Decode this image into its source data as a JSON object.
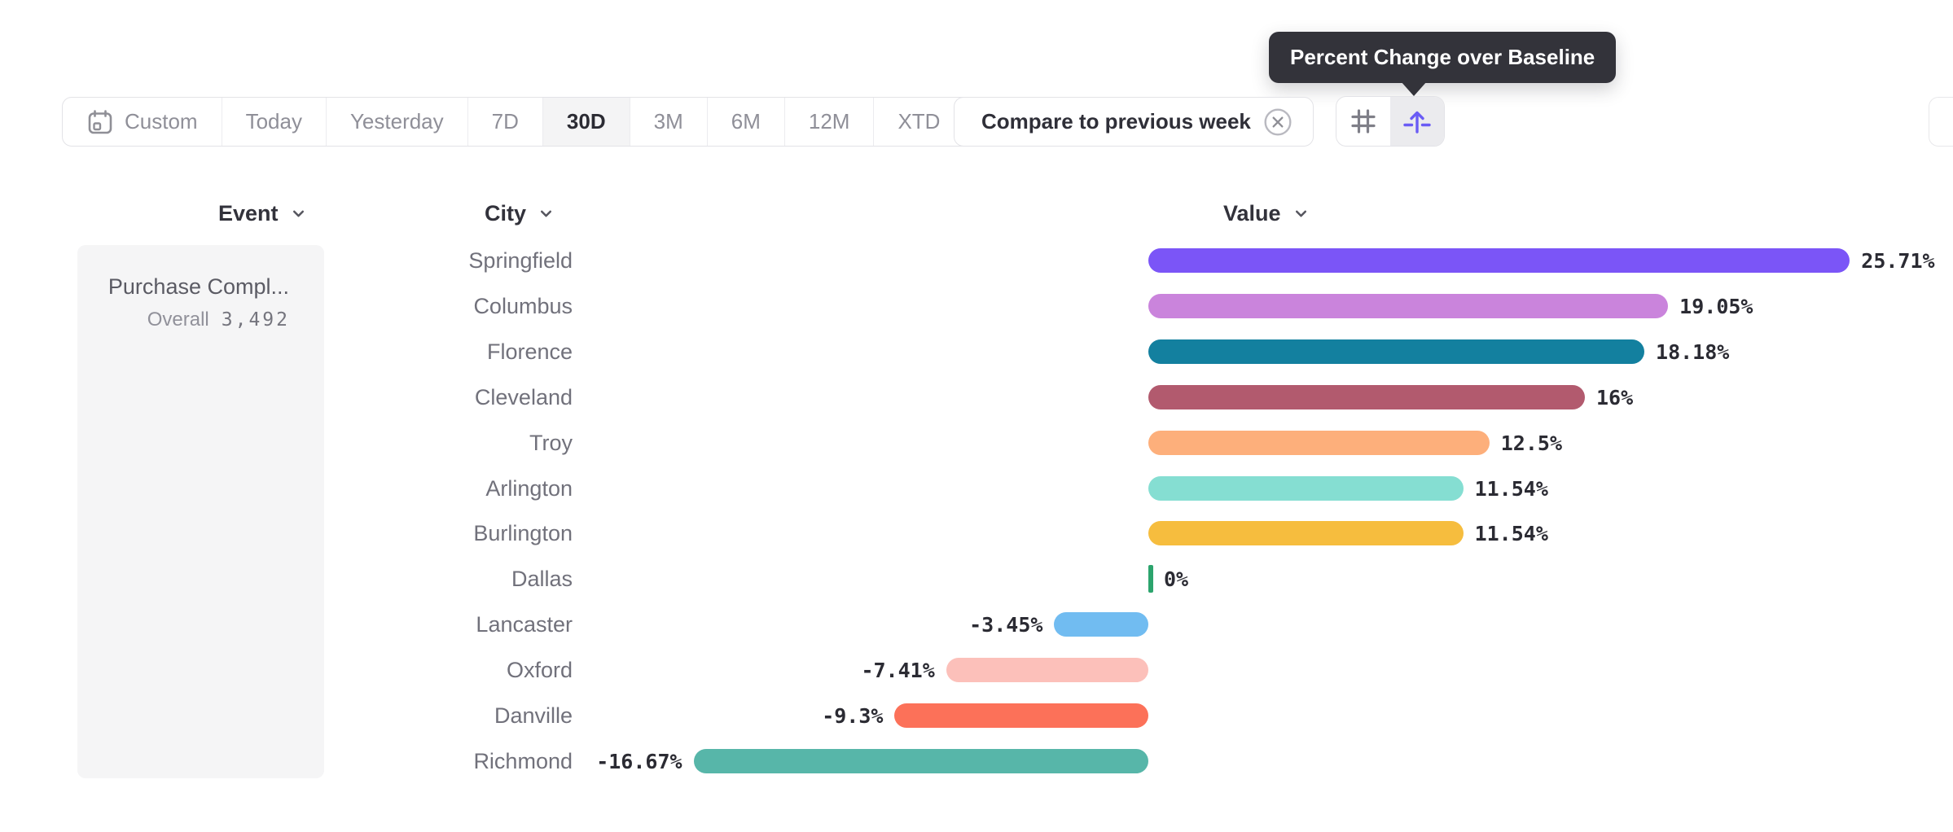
{
  "tooltip": {
    "text": "Percent Change over Baseline",
    "bg": "#33333a"
  },
  "toolbar": {
    "date_ranges": [
      {
        "label": "Custom",
        "icon": "calendar-icon",
        "selected": false
      },
      {
        "label": "Today",
        "selected": false
      },
      {
        "label": "Yesterday",
        "selected": false
      },
      {
        "label": "7D",
        "selected": false
      },
      {
        "label": "30D",
        "selected": true
      },
      {
        "label": "3M",
        "selected": false
      },
      {
        "label": "6M",
        "selected": false
      },
      {
        "label": "12M",
        "selected": false
      },
      {
        "label": "XTD",
        "chevron": true,
        "selected": false
      }
    ],
    "compare_label": "Compare to previous week",
    "compare_dismiss_icon": "circle-x-icon",
    "view_toggles": [
      {
        "name": "grid-view",
        "icon": "hash-grid-icon",
        "active": false,
        "color": "#7f7f88"
      },
      {
        "name": "percent-change-baseline-view",
        "icon": "arrow-over-baseline-icon",
        "active": true,
        "color": "#6a5cf5"
      }
    ]
  },
  "columns": {
    "event": "Event",
    "city": "City",
    "value": "Value"
  },
  "event_panel": {
    "event_name": "Purchase Compl...",
    "metric_label": "Overall",
    "metric_value": "3,492"
  },
  "chart_data": {
    "type": "bar",
    "orientation": "horizontal",
    "title": "Percent Change over Baseline",
    "unit": "%",
    "grid": false,
    "baseline": 0,
    "xlim": [
      -20,
      27
    ],
    "value_label_position": "end",
    "categories": [
      "Springfield",
      "Columbus",
      "Florence",
      "Cleveland",
      "Troy",
      "Arlington",
      "Burlington",
      "Dallas",
      "Lancaster",
      "Oxford",
      "Danville",
      "Richmond"
    ],
    "values": [
      25.71,
      19.05,
      18.18,
      16,
      12.5,
      11.54,
      11.54,
      0,
      -3.45,
      -7.41,
      -9.3,
      -16.67
    ],
    "labels": [
      "25.71%",
      "19.05%",
      "18.18%",
      "16%",
      "12.5%",
      "11.54%",
      "11.54%",
      "0%",
      "-3.45%",
      "-7.41%",
      "-9.3%",
      "-16.67%"
    ],
    "colors": [
      "#7b55f7",
      "#ca84dc",
      "#13809f",
      "#b25a6e",
      "#fdaf7b",
      "#85ded2",
      "#f6bd3e",
      "#2ca46d",
      "#71bcf1",
      "#fcc0ba",
      "#fc7159",
      "#57b6a9"
    ]
  }
}
